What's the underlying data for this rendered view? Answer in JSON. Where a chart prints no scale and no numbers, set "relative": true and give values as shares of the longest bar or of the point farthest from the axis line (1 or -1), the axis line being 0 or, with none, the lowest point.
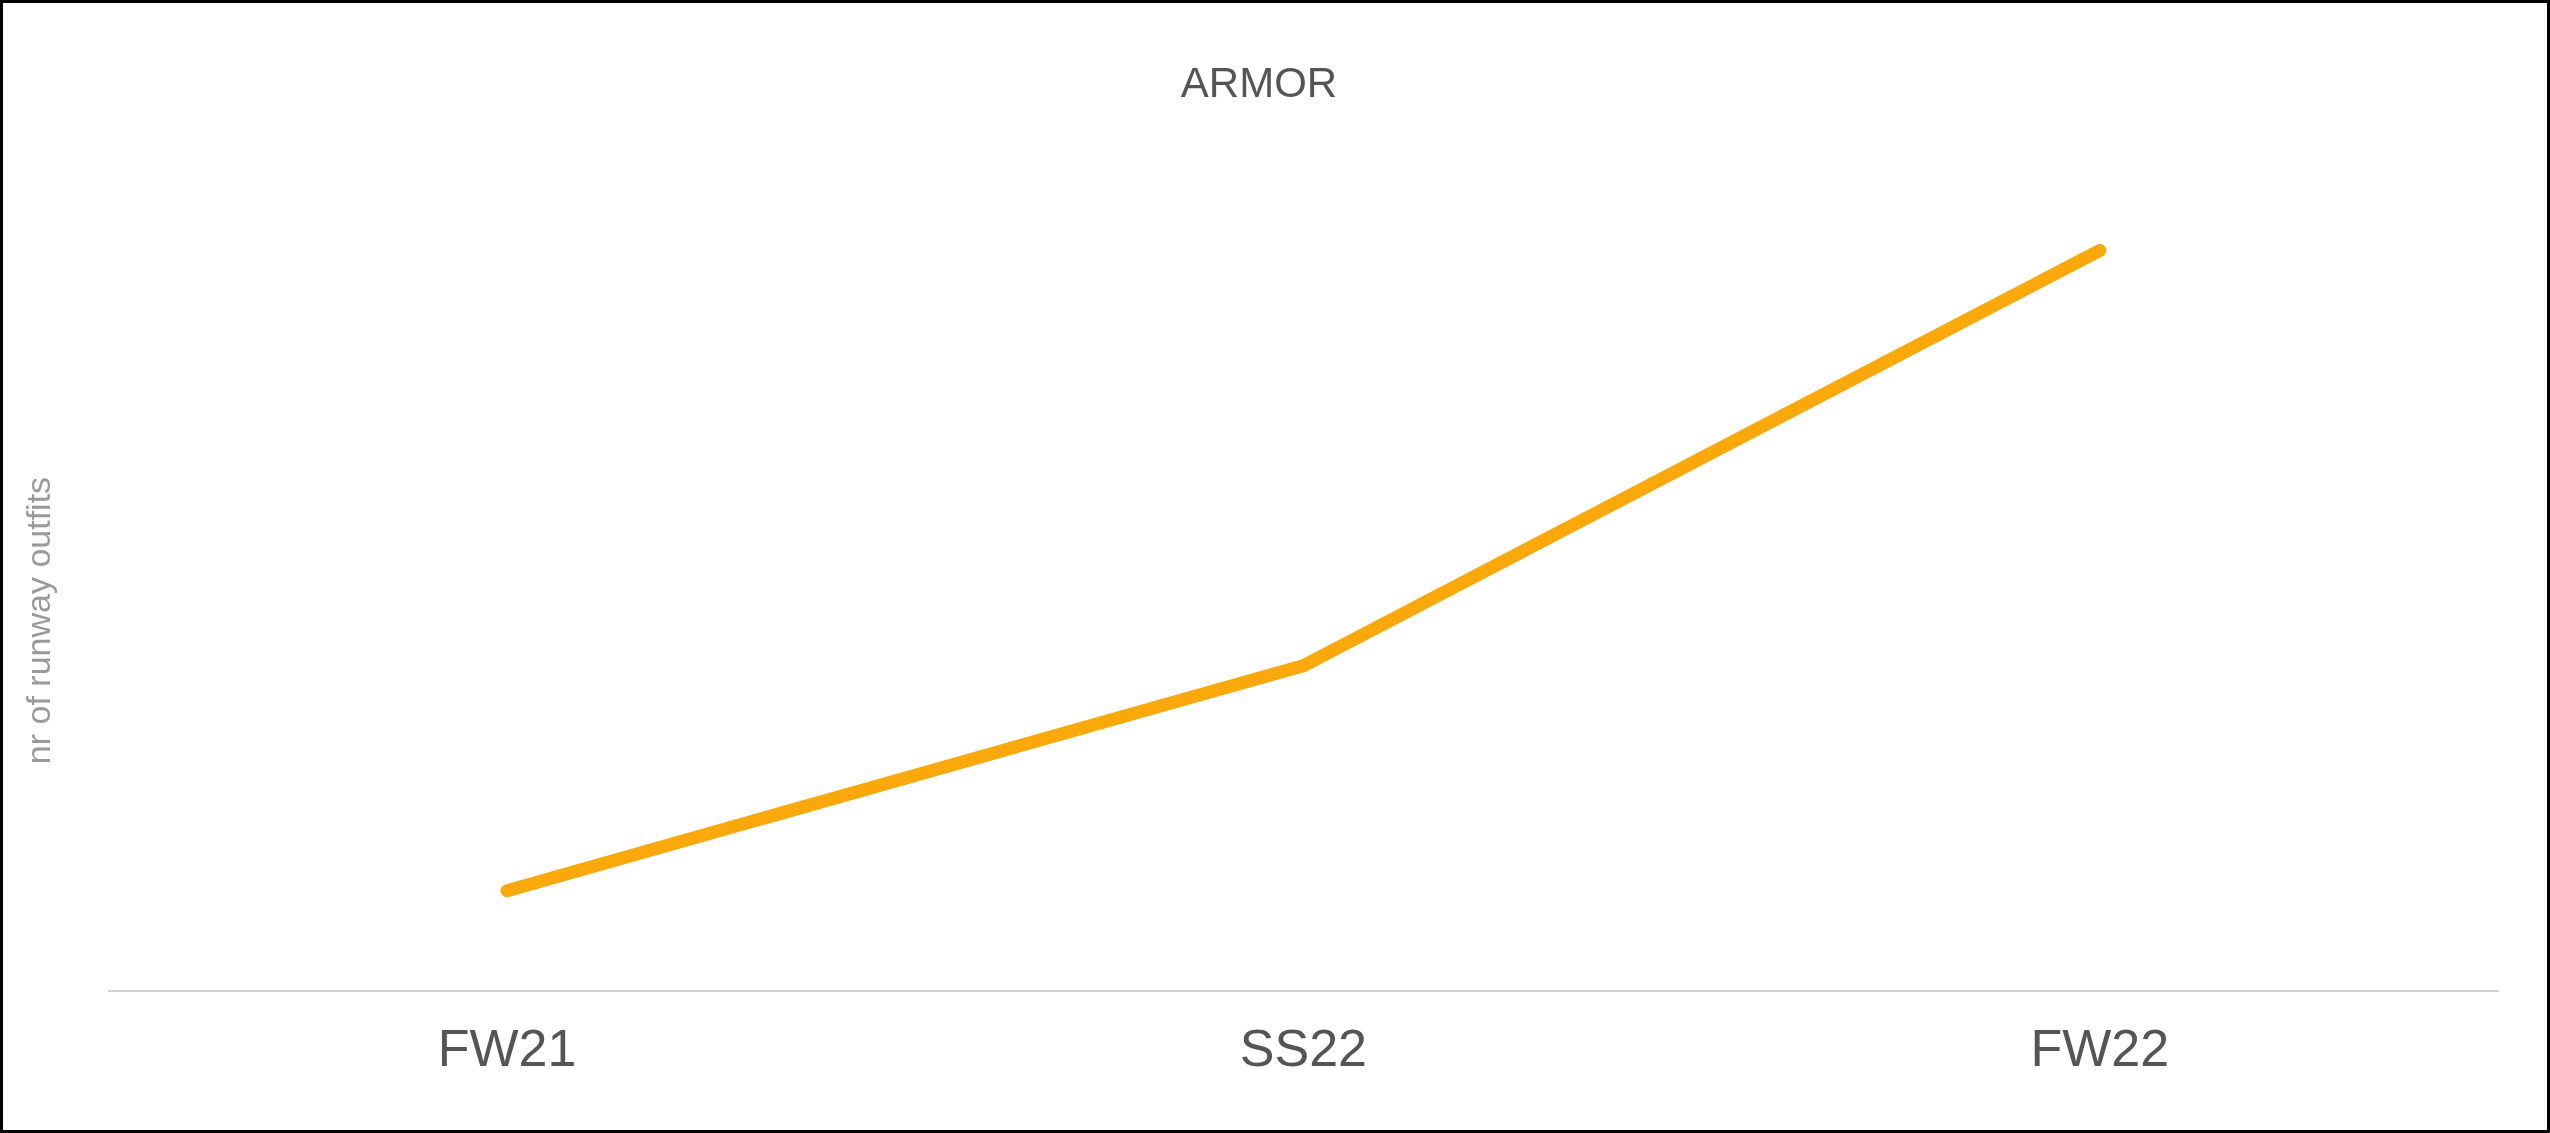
{
  "chart_data": {
    "type": "line",
    "title": "ARMOR",
    "ylabel": "nr of runway outfits",
    "categories": [
      "FW21",
      "SS22",
      "FW22"
    ],
    "relative": true,
    "series": [
      {
        "color": "#fba90a",
        "values": [
          0.135,
          0.439,
          1
        ]
      }
    ],
    "grid": false,
    "legend": false,
    "marker": "none",
    "line_style": "solid"
  }
}
